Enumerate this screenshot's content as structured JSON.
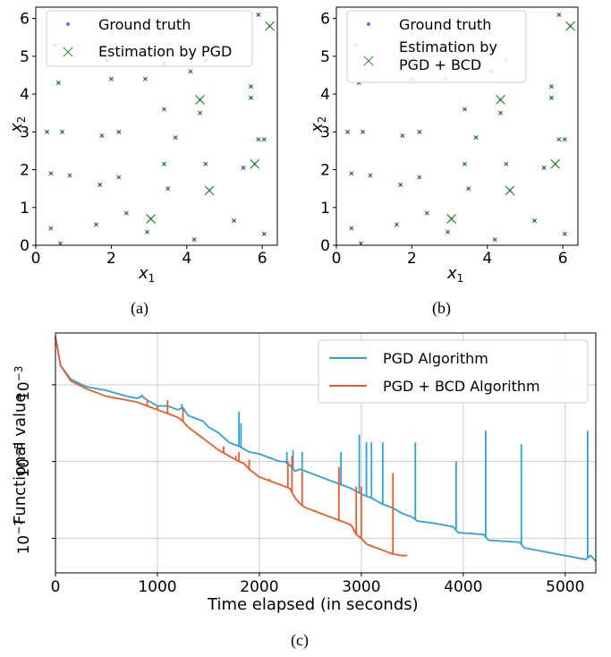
{
  "chart_data": [
    {
      "type": "scatter",
      "caption": "(a)",
      "xlabel": "x",
      "xlabel_sub": "1",
      "ylabel": "x",
      "ylabel_sub": "2",
      "xlim": [
        0,
        6.4
      ],
      "ylim": [
        0,
        6.3
      ],
      "xticks": [
        "0",
        "2",
        "4",
        "6"
      ],
      "yticks": [
        "0",
        "1",
        "2",
        "3",
        "4",
        "5",
        "6"
      ],
      "legend_position": "top-left",
      "series": [
        {
          "name": "Ground truth",
          "marker": "dot",
          "color": "#7b68ee"
        },
        {
          "name": "Estimation by PGD",
          "marker": "x",
          "color": "#2e8b2e"
        }
      ],
      "points": [
        [
          0.5,
          5.3
        ],
        [
          0.6,
          4.3
        ],
        [
          1.9,
          4.9
        ],
        [
          2.0,
          4.4
        ],
        [
          2.9,
          4.4
        ],
        [
          3.4,
          4.8
        ],
        [
          4.1,
          4.6
        ],
        [
          4.5,
          4.9
        ],
        [
          5.9,
          6.1
        ],
        [
          6.2,
          5.8
        ],
        [
          4.35,
          3.85
        ],
        [
          4.35,
          3.5
        ],
        [
          3.4,
          3.6
        ],
        [
          5.7,
          4.2
        ],
        [
          5.7,
          3.9
        ],
        [
          0.3,
          3.0
        ],
        [
          0.7,
          3.0
        ],
        [
          1.75,
          2.9
        ],
        [
          2.2,
          3.0
        ],
        [
          3.7,
          2.85
        ],
        [
          5.9,
          2.8
        ],
        [
          6.05,
          2.8
        ],
        [
          0.4,
          1.9
        ],
        [
          0.9,
          1.85
        ],
        [
          1.7,
          1.6
        ],
        [
          2.2,
          1.8
        ],
        [
          3.4,
          2.15
        ],
        [
          4.5,
          2.15
        ],
        [
          5.8,
          2.15
        ],
        [
          5.5,
          2.05
        ],
        [
          3.5,
          1.5
        ],
        [
          4.6,
          1.45
        ],
        [
          2.4,
          0.85
        ],
        [
          1.6,
          0.55
        ],
        [
          3.05,
          0.7
        ],
        [
          2.95,
          0.35
        ],
        [
          5.25,
          0.65
        ],
        [
          6.05,
          0.3
        ],
        [
          0.4,
          0.45
        ],
        [
          0.65,
          0.05
        ],
        [
          4.2,
          0.15
        ]
      ],
      "big_points": [
        [
          6.2,
          5.8
        ],
        [
          4.35,
          3.85
        ],
        [
          5.8,
          2.15
        ],
        [
          4.6,
          1.45
        ],
        [
          3.05,
          0.7
        ]
      ]
    },
    {
      "type": "scatter",
      "caption": "(b)",
      "xlabel": "x",
      "xlabel_sub": "1",
      "ylabel": "x",
      "ylabel_sub": "2",
      "xlim": [
        0,
        6.4
      ],
      "ylim": [
        0,
        6.3
      ],
      "xticks": [
        "0",
        "2",
        "4",
        "6"
      ],
      "yticks": [
        "0",
        "1",
        "2",
        "3",
        "4",
        "5",
        "6"
      ],
      "legend_position": "top-left",
      "series": [
        {
          "name": "Ground truth",
          "marker": "dot",
          "color": "#7b68ee"
        },
        {
          "name": "Estimation by",
          "name_line2": "PGD + BCD",
          "marker": "x",
          "color": "#2e8b2e"
        }
      ],
      "points": [
        [
          0.5,
          5.3
        ],
        [
          0.6,
          4.3
        ],
        [
          1.9,
          4.9
        ],
        [
          2.0,
          4.4
        ],
        [
          2.9,
          4.4
        ],
        [
          3.4,
          4.8
        ],
        [
          4.1,
          4.6
        ],
        [
          4.5,
          4.9
        ],
        [
          5.9,
          6.1
        ],
        [
          6.2,
          5.8
        ],
        [
          4.35,
          3.85
        ],
        [
          4.35,
          3.5
        ],
        [
          3.4,
          3.6
        ],
        [
          5.7,
          4.2
        ],
        [
          5.7,
          3.9
        ],
        [
          0.3,
          3.0
        ],
        [
          0.7,
          3.0
        ],
        [
          1.75,
          2.9
        ],
        [
          2.2,
          3.0
        ],
        [
          3.7,
          2.85
        ],
        [
          5.9,
          2.8
        ],
        [
          6.05,
          2.8
        ],
        [
          0.4,
          1.9
        ],
        [
          0.9,
          1.85
        ],
        [
          1.7,
          1.6
        ],
        [
          2.2,
          1.8
        ],
        [
          3.4,
          2.15
        ],
        [
          4.5,
          2.15
        ],
        [
          5.8,
          2.15
        ],
        [
          5.5,
          2.05
        ],
        [
          3.5,
          1.5
        ],
        [
          4.6,
          1.45
        ],
        [
          2.4,
          0.85
        ],
        [
          1.6,
          0.55
        ],
        [
          3.05,
          0.7
        ],
        [
          2.95,
          0.35
        ],
        [
          5.25,
          0.65
        ],
        [
          6.05,
          0.3
        ],
        [
          0.4,
          0.45
        ],
        [
          0.65,
          0.05
        ],
        [
          4.2,
          0.15
        ]
      ],
      "big_points": [
        [
          6.2,
          5.8
        ],
        [
          4.35,
          3.85
        ],
        [
          5.8,
          2.15
        ],
        [
          4.6,
          1.45
        ],
        [
          3.05,
          0.7
        ]
      ]
    },
    {
      "type": "line",
      "caption": "(c)",
      "xlabel": "Time elapsed (in seconds)",
      "ylabel": "Functional value",
      "log_y": true,
      "xlim": [
        0,
        5300
      ],
      "ylim_log10": [
        -7.9,
        -1.65
      ],
      "xticks": [
        "0",
        "1000",
        "2000",
        "3000",
        "4000",
        "5000"
      ],
      "xtick_values": [
        0,
        1000,
        2000,
        3000,
        4000,
        5000
      ],
      "yticks": [
        "10",
        "10",
        "10"
      ],
      "ytick_exps": [
        "−3",
        "−5",
        "−7"
      ],
      "ytick_values_log10": [
        -3,
        -5,
        -7
      ],
      "grid": true,
      "legend_position": "top-right",
      "series": [
        {
          "name": "PGD Algorithm",
          "color": "#2ba3d6",
          "x": [
            0,
            50,
            150,
            300,
            500,
            700,
            800,
            850,
            900,
            1000,
            1100,
            1200,
            1250,
            1300,
            1400,
            1450,
            1500,
            1600,
            1700,
            1800,
            1900,
            2000,
            2100,
            2200,
            2250,
            2300,
            2350,
            2400,
            2500,
            2600,
            2700,
            2800,
            2900,
            3000,
            3100,
            3200,
            3300,
            3400,
            3500,
            3550,
            3700,
            3900,
            3950,
            4200,
            4250,
            4550,
            4600,
            5000,
            5200,
            5250,
            5300
          ],
          "log10_y": [
            -1.75,
            -2.5,
            -2.85,
            -3.05,
            -3.15,
            -3.3,
            -3.35,
            -3.3,
            -3.4,
            -3.55,
            -3.55,
            -3.65,
            -3.6,
            -3.8,
            -3.9,
            -3.95,
            -4.1,
            -4.25,
            -4.5,
            -4.6,
            -4.75,
            -4.8,
            -4.9,
            -5.0,
            -5.0,
            -5.1,
            -5.25,
            -5.2,
            -5.3,
            -5.4,
            -5.5,
            -5.6,
            -5.7,
            -5.85,
            -5.95,
            -6.1,
            -6.2,
            -6.35,
            -6.45,
            -6.55,
            -6.6,
            -6.7,
            -6.85,
            -6.9,
            -7.05,
            -7.1,
            -7.25,
            -7.45,
            -7.55,
            -7.45,
            -7.6
          ]
        },
        {
          "name": "PGD + BCD Algorithm",
          "color": "#f05a28",
          "x": [
            0,
            50,
            150,
            300,
            500,
            700,
            800,
            900,
            1000,
            1100,
            1200,
            1250,
            1300,
            1400,
            1500,
            1600,
            1700,
            1800,
            1850,
            1900,
            2000,
            2100,
            2200,
            2300,
            2350,
            2400,
            2450,
            2500,
            2600,
            2700,
            2800,
            2900,
            2950,
            3000,
            3050,
            3100,
            3200,
            3300,
            3400,
            3450
          ],
          "log10_y": [
            -1.75,
            -2.5,
            -2.9,
            -3.1,
            -3.3,
            -3.4,
            -3.45,
            -3.55,
            -3.65,
            -3.75,
            -3.85,
            -3.95,
            -4.1,
            -4.3,
            -4.5,
            -4.7,
            -4.85,
            -5.0,
            -5.05,
            -5.2,
            -5.4,
            -5.5,
            -5.6,
            -5.7,
            -5.95,
            -6.1,
            -6.2,
            -6.25,
            -6.35,
            -6.45,
            -6.55,
            -6.65,
            -6.9,
            -7.0,
            -7.15,
            -7.2,
            -7.3,
            -7.4,
            -7.45,
            -7.45
          ]
        }
      ],
      "spikes_blue": [
        [
          850,
          -3.25
        ],
        [
          1240,
          -3.5
        ],
        [
          1800,
          -3.7
        ],
        [
          1820,
          -4.0
        ],
        [
          2270,
          -4.75
        ],
        [
          2330,
          -4.7
        ],
        [
          2420,
          -4.75
        ],
        [
          2800,
          -4.75
        ],
        [
          2980,
          -4.3
        ],
        [
          3050,
          -4.5
        ],
        [
          3100,
          -4.5
        ],
        [
          3210,
          -4.5
        ],
        [
          3530,
          -4.5
        ],
        [
          3930,
          -5.0
        ],
        [
          4220,
          -4.2
        ],
        [
          4570,
          -4.55
        ],
        [
          5220,
          -4.2
        ]
      ],
      "spikes_red": [
        [
          900,
          -3.4
        ],
        [
          1000,
          -3.55
        ],
        [
          1100,
          -3.4
        ],
        [
          1250,
          -3.6
        ],
        [
          1650,
          -4.6
        ],
        [
          1770,
          -4.85
        ],
        [
          1800,
          -4.75
        ],
        [
          1900,
          -4.95
        ],
        [
          2100,
          -5.45
        ],
        [
          2280,
          -5.0
        ],
        [
          2320,
          -4.85
        ],
        [
          2420,
          -5.25
        ],
        [
          2780,
          -5.15
        ],
        [
          2950,
          -5.65
        ],
        [
          3000,
          -5.65
        ],
        [
          3310,
          -5.3
        ]
      ]
    }
  ]
}
